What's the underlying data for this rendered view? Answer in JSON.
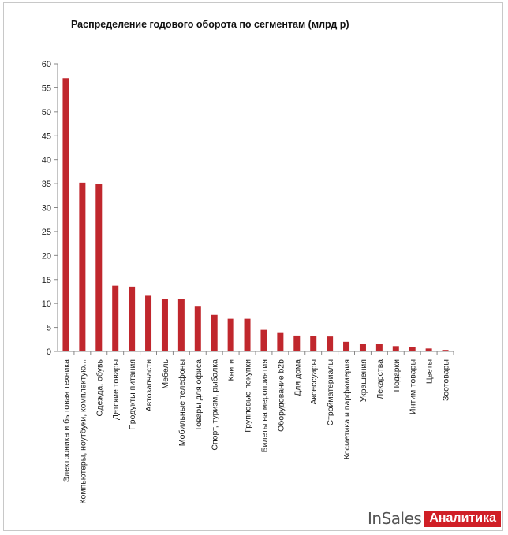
{
  "chart_data": {
    "type": "bar",
    "title": "Распределение годового оборота по сегментам (млрд р)",
    "xlabel": "",
    "ylabel": "",
    "ylim": [
      0,
      60
    ],
    "yticks": [
      0,
      5,
      10,
      15,
      20,
      25,
      30,
      35,
      40,
      45,
      50,
      55,
      60
    ],
    "grid": false,
    "legend": "none",
    "bar_color": "#c0272d",
    "categories": [
      "Электроника и бытовая техника",
      "Компьютеры, ноутбуки, комплектую...",
      "Одежда, обувь",
      "Детские товары",
      "Продукты питания",
      "Автозапчасти",
      "Мебель",
      "Мобильные телефоны",
      "Товары для офиса",
      "Спорт, туризм, рыбалка",
      "Книги",
      "Групповые покупки",
      "Билеты на мероприятия",
      "Оборудование b2b",
      "Для дома",
      "Аксессуары",
      "Стройматериалы",
      "Косметика и парфюмерия",
      "Украшения",
      "Лекарства",
      "Подарки",
      "Интим-товары",
      "Цветы",
      "Зоотовары"
    ],
    "values": [
      57,
      35.2,
      35,
      13.7,
      13.5,
      11.6,
      11,
      11,
      9.5,
      7.6,
      6.8,
      6.8,
      4.5,
      4,
      3.3,
      3.2,
      3.1,
      2,
      1.6,
      1.6,
      1.1,
      0.9,
      0.6,
      0.3
    ]
  },
  "brand": {
    "in": "In",
    "sales": "Sales",
    "tag": "Аналитика",
    "accent": "#d01f26"
  }
}
